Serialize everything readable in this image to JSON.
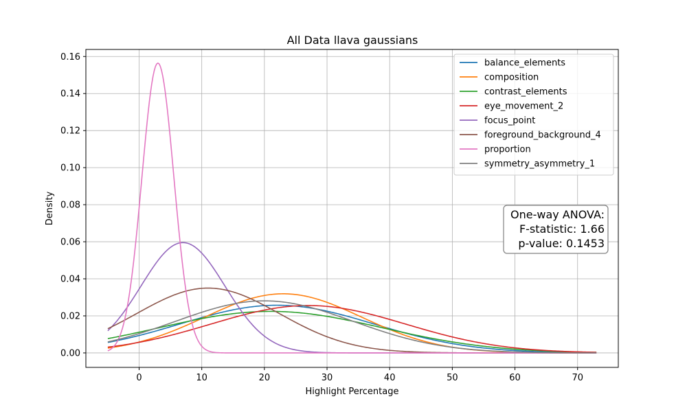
{
  "chart_data": {
    "type": "line",
    "title": "All Data llava gaussians",
    "xlabel": "Highlight Percentage",
    "ylabel": "Density",
    "xlim": [
      -8.5,
      76.5
    ],
    "ylim": [
      -0.0078,
      0.1638
    ],
    "x_range": [
      -5,
      73
    ],
    "xticks": [
      0,
      10,
      20,
      30,
      40,
      50,
      60,
      70
    ],
    "yticks": [
      0.0,
      0.02,
      0.04,
      0.06,
      0.08,
      0.1,
      0.12,
      0.14,
      0.16
    ],
    "ytick_labels": [
      "0.00",
      "0.02",
      "0.04",
      "0.06",
      "0.08",
      "0.10",
      "0.12",
      "0.14",
      "0.16"
    ],
    "grid": true,
    "legend_position": "top-right",
    "series": [
      {
        "name": "balance_elements",
        "color": "#1f77b4",
        "mean": 22,
        "sd": 15.5
      },
      {
        "name": "composition",
        "color": "#ff7f0e",
        "mean": 23,
        "sd": 12.5
      },
      {
        "name": "contrast_elements",
        "color": "#2ca02c",
        "mean": 21,
        "sd": 17.8
      },
      {
        "name": "eye_movement_2",
        "color": "#d62728",
        "mean": 27,
        "sd": 15.6
      },
      {
        "name": "focus_point",
        "color": "#9467bd",
        "mean": 7,
        "sd": 6.7
      },
      {
        "name": "foreground_background_4",
        "color": "#8c564b",
        "mean": 11,
        "sd": 11.4
      },
      {
        "name": "proportion",
        "color": "#e377c2",
        "mean": 3,
        "sd": 2.55
      },
      {
        "name": "symmetry_asymmetry_1",
        "color": "#7f7f7f",
        "mean": 20,
        "sd": 14.2
      }
    ],
    "annotation": {
      "lines": [
        "One-way ANOVA:",
        "F-statistic: 1.66",
        "p-value: 0.1453"
      ],
      "position": "right-middle"
    }
  }
}
